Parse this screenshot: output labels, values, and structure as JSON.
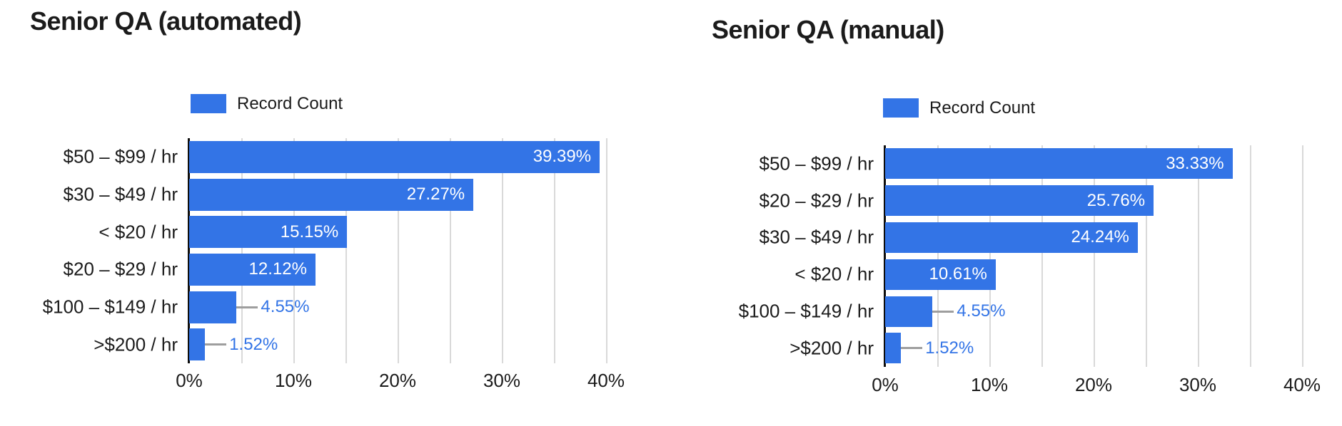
{
  "colors": {
    "bar": "#3374e6",
    "outside_label": "#3374e6",
    "inside_label": "#ffffff",
    "callout_line": "#9e9e9e",
    "gridline": "#d9d9d9",
    "axis_line": "#0d0d0d",
    "text": "#1b1b1b"
  },
  "chart_data": [
    {
      "type": "bar",
      "orientation": "horizontal",
      "title": "Senior QA (automated)",
      "legend_label": "Record Count",
      "legend_position": "top",
      "series_name": "Record Count",
      "categories": [
        "$50 – $99 / hr",
        "$30 – $49 / hr",
        "< $20 / hr",
        "$20 – $29 / hr",
        "$100 – $149 / hr",
        ">$200 / hr"
      ],
      "values": [
        39.39,
        27.27,
        15.15,
        12.12,
        4.55,
        1.52
      ],
      "value_labels": [
        "39.39%",
        "27.27%",
        "15.15%",
        "12.12%",
        "4.55%",
        "1.52%"
      ],
      "xlabel": "",
      "ylabel": "",
      "x_tick_values": [
        0,
        10,
        20,
        30,
        40
      ],
      "x_tick_labels": [
        "0%",
        "10%",
        "20%",
        "30%",
        "40%"
      ],
      "xlim": [
        0,
        42
      ],
      "gridline_step": 5,
      "grid": true,
      "inside_label_min_pct": 10
    },
    {
      "type": "bar",
      "orientation": "horizontal",
      "title": "Senior QA (manual)",
      "legend_label": "Record Count",
      "legend_position": "top",
      "series_name": "Record Count",
      "categories": [
        "$50 – $99 / hr",
        "$20 – $29 / hr",
        "$30 – $49 / hr",
        "< $20 / hr",
        "$100 – $149 / hr",
        ">$200 / hr"
      ],
      "values": [
        33.33,
        25.76,
        24.24,
        10.61,
        4.55,
        1.52
      ],
      "value_labels": [
        "33.33%",
        "25.76%",
        "24.24%",
        "10.61%",
        "4.55%",
        "1.52%"
      ],
      "xlabel": "",
      "ylabel": "",
      "x_tick_values": [
        0,
        10,
        20,
        30,
        40
      ],
      "x_tick_labels": [
        "0%",
        "10%",
        "20%",
        "30%",
        "40%"
      ],
      "xlim": [
        0,
        42
      ],
      "gridline_step": 5,
      "grid": true,
      "inside_label_min_pct": 10
    }
  ]
}
